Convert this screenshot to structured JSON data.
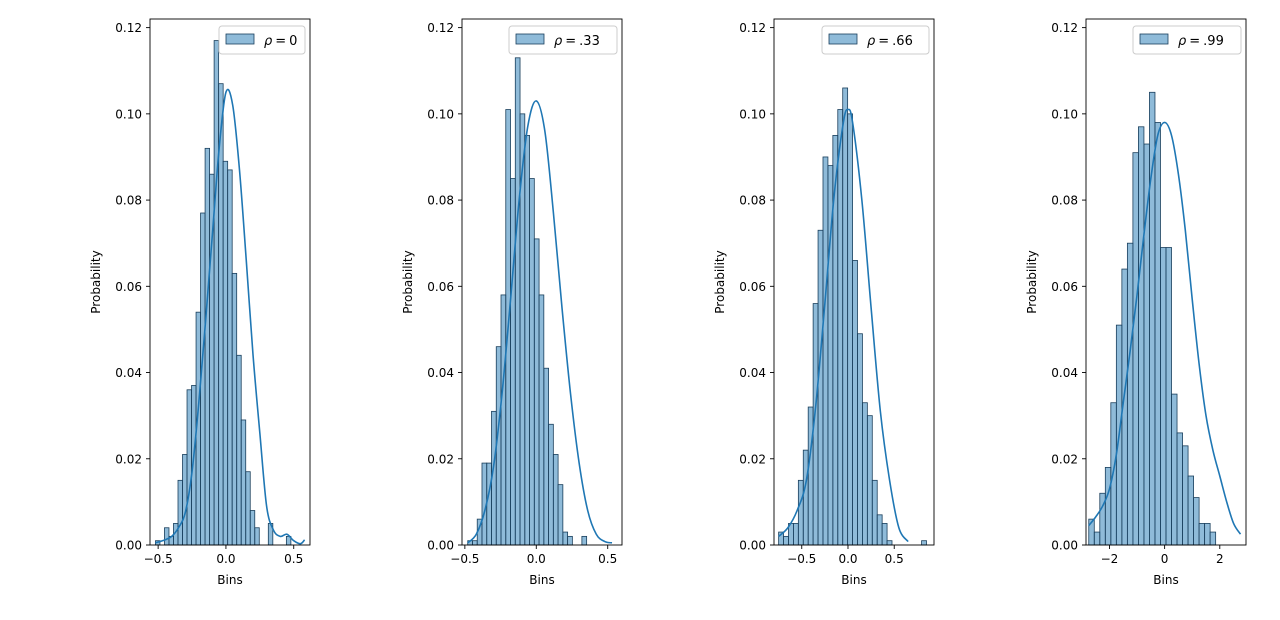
{
  "chart_data": [
    {
      "type": "histogram",
      "legend": {
        "label": "ρ = 0",
        "sym": "ρ",
        "op": "=",
        "val": "0",
        "placement": "upper right"
      },
      "xlabel": "Bins",
      "ylabel": "Probability",
      "xlim": [
        -0.56,
        0.62
      ],
      "ylim": [
        0,
        0.122
      ],
      "xticks": [
        -0.5,
        0.0,
        0.5
      ],
      "xtick_labels": [
        "−0.5",
        "0.0",
        "0.5"
      ],
      "yticks": [
        0.0,
        0.02,
        0.04,
        0.06,
        0.08,
        0.1,
        0.12
      ],
      "ytick_labels": [
        "0.00",
        "0.02",
        "0.04",
        "0.06",
        "0.08",
        "0.10",
        "0.12"
      ],
      "bins": {
        "start": -0.52,
        "width": 0.0333,
        "values": [
          0.001,
          0.0,
          0.004,
          0.002,
          0.005,
          0.015,
          0.021,
          0.036,
          0.037,
          0.054,
          0.077,
          0.092,
          0.086,
          0.117,
          0.107,
          0.089,
          0.087,
          0.063,
          0.044,
          0.029,
          0.017,
          0.008,
          0.004,
          0.0,
          0.0,
          0.005,
          0.0,
          0.0,
          0.0,
          0.002
        ]
      },
      "kde": {
        "x": [
          -0.52,
          -0.45,
          -0.4,
          -0.35,
          -0.3,
          -0.25,
          -0.2,
          -0.15,
          -0.1,
          -0.05,
          0.0,
          0.05,
          0.1,
          0.15,
          0.2,
          0.25,
          0.3,
          0.35,
          0.4,
          0.45,
          0.5,
          0.55,
          0.58
        ],
        "y": [
          0.0005,
          0.0012,
          0.002,
          0.004,
          0.0075,
          0.017,
          0.033,
          0.052,
          0.072,
          0.092,
          0.105,
          0.102,
          0.087,
          0.066,
          0.044,
          0.026,
          0.009,
          0.0035,
          0.002,
          0.0025,
          0.001,
          0.0003,
          0.0012
        ]
      }
    },
    {
      "type": "histogram",
      "legend": {
        "label": "ρ = .33",
        "sym": "ρ",
        "op": "=",
        "val": ".33",
        "placement": "upper right"
      },
      "xlabel": "Bins",
      "ylabel": "Probability",
      "xlim": [
        -0.52,
        0.6
      ],
      "ylim": [
        0,
        0.122
      ],
      "xticks": [
        -0.5,
        0.0,
        0.5
      ],
      "xtick_labels": [
        "−0.5",
        "0.0",
        "0.5"
      ],
      "yticks": [
        0.0,
        0.02,
        0.04,
        0.06,
        0.08,
        0.1,
        0.12
      ],
      "ytick_labels": [
        "0.00",
        "0.02",
        "0.04",
        "0.06",
        "0.08",
        "0.10",
        "0.12"
      ],
      "bins": {
        "start": -0.48,
        "width": 0.0333,
        "values": [
          0.001,
          0.001,
          0.006,
          0.019,
          0.019,
          0.031,
          0.046,
          0.058,
          0.101,
          0.085,
          0.113,
          0.1,
          0.095,
          0.085,
          0.071,
          0.058,
          0.041,
          0.028,
          0.021,
          0.014,
          0.003,
          0.002,
          0.0,
          0.0,
          0.002
        ]
      },
      "kde": {
        "x": [
          -0.48,
          -0.42,
          -0.36,
          -0.3,
          -0.24,
          -0.18,
          -0.12,
          -0.06,
          0.0,
          0.06,
          0.12,
          0.18,
          0.24,
          0.3,
          0.36,
          0.42,
          0.48,
          0.53
        ],
        "y": [
          0.0005,
          0.0025,
          0.008,
          0.018,
          0.035,
          0.057,
          0.08,
          0.097,
          0.103,
          0.096,
          0.077,
          0.055,
          0.035,
          0.019,
          0.008,
          0.0025,
          0.0008,
          0.0005
        ]
      }
    },
    {
      "type": "histogram",
      "legend": {
        "label": "ρ = .66",
        "sym": "ρ",
        "op": "=",
        "val": ".66",
        "placement": "upper right"
      },
      "xlabel": "Bins",
      "ylabel": "Probability",
      "xlim": [
        -0.8,
        0.93
      ],
      "ylim": [
        0,
        0.122
      ],
      "xticks": [
        -0.5,
        0.0,
        0.5
      ],
      "xtick_labels": [
        "−0.5",
        "0.0",
        "0.5"
      ],
      "yticks": [
        0.0,
        0.02,
        0.04,
        0.06,
        0.08,
        0.1,
        0.12
      ],
      "ytick_labels": [
        "0.00",
        "0.02",
        "0.04",
        "0.06",
        "0.08",
        "0.10",
        "0.12"
      ],
      "bins": {
        "start": -0.75,
        "width": 0.0533,
        "values": [
          0.003,
          0.002,
          0.005,
          0.005,
          0.015,
          0.022,
          0.032,
          0.056,
          0.073,
          0.09,
          0.088,
          0.095,
          0.101,
          0.106,
          0.1,
          0.066,
          0.049,
          0.033,
          0.03,
          0.015,
          0.007,
          0.005,
          0.001,
          0.0,
          0.0,
          0.0,
          0.0,
          0.0,
          0.0,
          0.001
        ]
      },
      "kde": {
        "x": [
          -0.75,
          -0.65,
          -0.55,
          -0.45,
          -0.35,
          -0.25,
          -0.15,
          -0.05,
          0.0,
          0.05,
          0.15,
          0.25,
          0.35,
          0.45,
          0.55,
          0.65
        ],
        "y": [
          0.002,
          0.004,
          0.008,
          0.015,
          0.032,
          0.056,
          0.081,
          0.098,
          0.101,
          0.098,
          0.08,
          0.055,
          0.031,
          0.015,
          0.004,
          0.0008
        ]
      }
    },
    {
      "type": "histogram",
      "legend": {
        "label": "ρ = .99",
        "sym": "ρ",
        "op": "=",
        "val": ".99",
        "placement": "upper right"
      },
      "xlabel": "Bins",
      "ylabel": "Probability",
      "xlim": [
        -2.85,
        2.95
      ],
      "ylim": [
        0,
        0.122
      ],
      "xticks": [
        -2,
        0,
        2
      ],
      "xtick_labels": [
        "−2",
        "0",
        "2"
      ],
      "yticks": [
        0.0,
        0.02,
        0.04,
        0.06,
        0.08,
        0.1,
        0.12
      ],
      "ytick_labels": [
        "0.00",
        "0.02",
        "0.04",
        "0.06",
        "0.08",
        "0.10",
        "0.12"
      ],
      "bins": {
        "start": -2.75,
        "width": 0.2,
        "values": [
          0.006,
          0.003,
          0.012,
          0.018,
          0.033,
          0.051,
          0.064,
          0.07,
          0.091,
          0.097,
          0.093,
          0.105,
          0.098,
          0.069,
          0.069,
          0.035,
          0.026,
          0.023,
          0.016,
          0.011,
          0.005,
          0.005,
          0.003
        ]
      },
      "kde": {
        "x": [
          -2.75,
          -2.5,
          -2.25,
          -2.0,
          -1.75,
          -1.5,
          -1.25,
          -1.0,
          -0.75,
          -0.5,
          -0.25,
          0.0,
          0.25,
          0.5,
          0.75,
          1.0,
          1.25,
          1.5,
          1.75,
          2.0,
          2.25,
          2.5,
          2.75
        ],
        "y": [
          0.0045,
          0.0065,
          0.009,
          0.013,
          0.021,
          0.033,
          0.045,
          0.058,
          0.072,
          0.085,
          0.095,
          0.098,
          0.095,
          0.086,
          0.073,
          0.057,
          0.042,
          0.03,
          0.022,
          0.016,
          0.01,
          0.005,
          0.0025
        ]
      }
    }
  ],
  "colors": {
    "bar_fill": "#1f77b4",
    "bar_edge": "#1a3f5c",
    "kde_line": "#1f77b4",
    "axes": "#000000",
    "legend_edge": "#cccccc"
  }
}
